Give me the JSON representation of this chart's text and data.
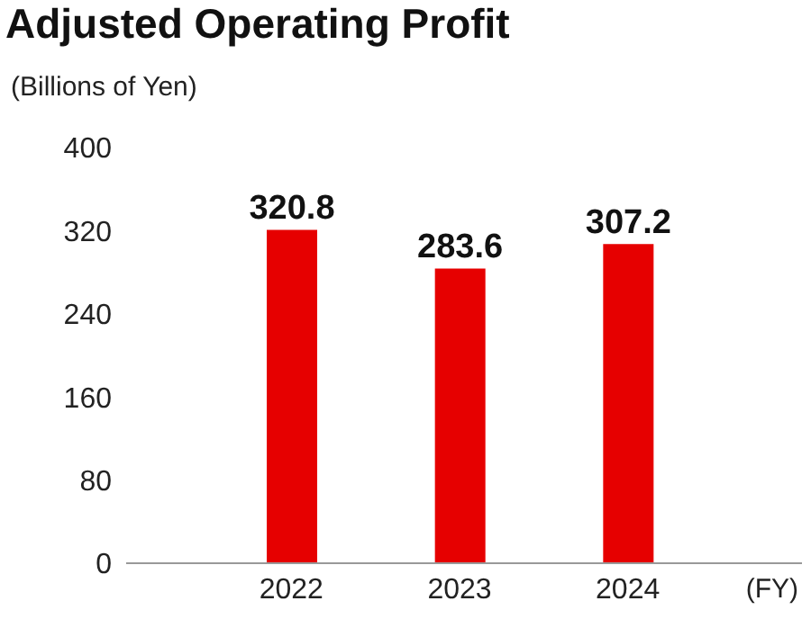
{
  "chart_data": {
    "type": "bar",
    "title": "Adjusted Operating Profit",
    "ylabel": "(Billions of Yen)",
    "xlabel": "(FY)",
    "categories": [
      "2022",
      "2023",
      "2024"
    ],
    "values": [
      320.8,
      283.6,
      307.2
    ],
    "color": "#e60000",
    "ylim": [
      0,
      400
    ],
    "yticks": [
      0,
      80,
      160,
      240,
      320,
      400
    ],
    "grid": false,
    "data_labels": true
  }
}
